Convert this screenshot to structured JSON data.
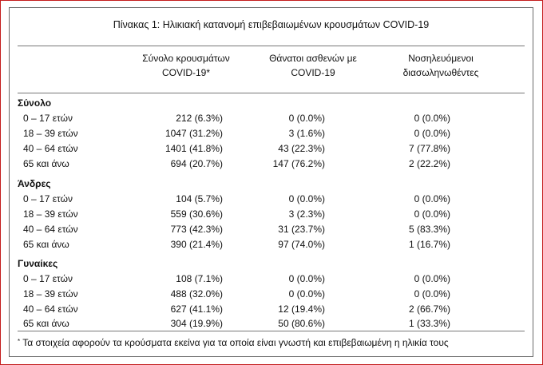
{
  "title": "Πίνακας 1: Ηλικιακή κατανομή επιβεβαιωμένων κρουσμάτων COVID-19",
  "columns": [
    {
      "line1": "Σύνολο κρουσμάτων",
      "line2": "COVID-19*"
    },
    {
      "line1": "Θάνατοι ασθενών με",
      "line2": "COVID-19"
    },
    {
      "line1": "Νοσηλευόμενοι",
      "line2": "διασωληνωθέντες"
    }
  ],
  "sections": [
    {
      "label": "Σύνολο",
      "rows": [
        {
          "age": "0 – 17 ετών",
          "cases": "212 (6.3%)",
          "deaths": "0 (0.0%)",
          "intubated": "0 (0.0%)"
        },
        {
          "age": "18 – 39 ετών",
          "cases": "1047 (31.2%)",
          "deaths": "3 (1.6%)",
          "intubated": "0 (0.0%)"
        },
        {
          "age": "40 – 64 ετών",
          "cases": "1401 (41.8%)",
          "deaths": "43 (22.3%)",
          "intubated": "7 (77.8%)"
        },
        {
          "age": "65 και άνω",
          "cases": "694 (20.7%)",
          "deaths": "147 (76.2%)",
          "intubated": "2 (22.2%)"
        }
      ]
    },
    {
      "label": "Άνδρες",
      "rows": [
        {
          "age": "0 – 17 ετών",
          "cases": "104 (5.7%)",
          "deaths": "0 (0.0%)",
          "intubated": "0 (0.0%)"
        },
        {
          "age": "18 – 39 ετών",
          "cases": "559 (30.6%)",
          "deaths": "3 (2.3%)",
          "intubated": "0 (0.0%)"
        },
        {
          "age": "40 – 64 ετών",
          "cases": "773 (42.3%)",
          "deaths": "31 (23.7%)",
          "intubated": "5 (83.3%)"
        },
        {
          "age": "65 και άνω",
          "cases": "390 (21.4%)",
          "deaths": "97 (74.0%)",
          "intubated": "1 (16.7%)"
        }
      ]
    },
    {
      "label": "Γυναίκες",
      "rows": [
        {
          "age": "0 – 17 ετών",
          "cases": "108 (7.1%)",
          "deaths": "0 (0.0%)",
          "intubated": "0 (0.0%)"
        },
        {
          "age": "18 – 39 ετών",
          "cases": "488 (32.0%)",
          "deaths": "0 (0.0%)",
          "intubated": "0 (0.0%)"
        },
        {
          "age": "40 – 64 ετών",
          "cases": "627 (41.1%)",
          "deaths": "12 (19.4%)",
          "intubated": "2 (66.7%)"
        },
        {
          "age": "65 και άνω",
          "cases": "304 (19.9%)",
          "deaths": "50 (80.6%)",
          "intubated": "1 (33.3%)"
        }
      ]
    }
  ],
  "footnote": {
    "marker": "*",
    "text": "Τα στοιχεία αφορούν τα κρούσματα εκείνα για τα οποία είναι γνωστή και επιβεβαιωμένη η ηλικία τους"
  },
  "colors": {
    "outer_border": "#c41c1c",
    "inner_border": "#6b6b6b"
  }
}
